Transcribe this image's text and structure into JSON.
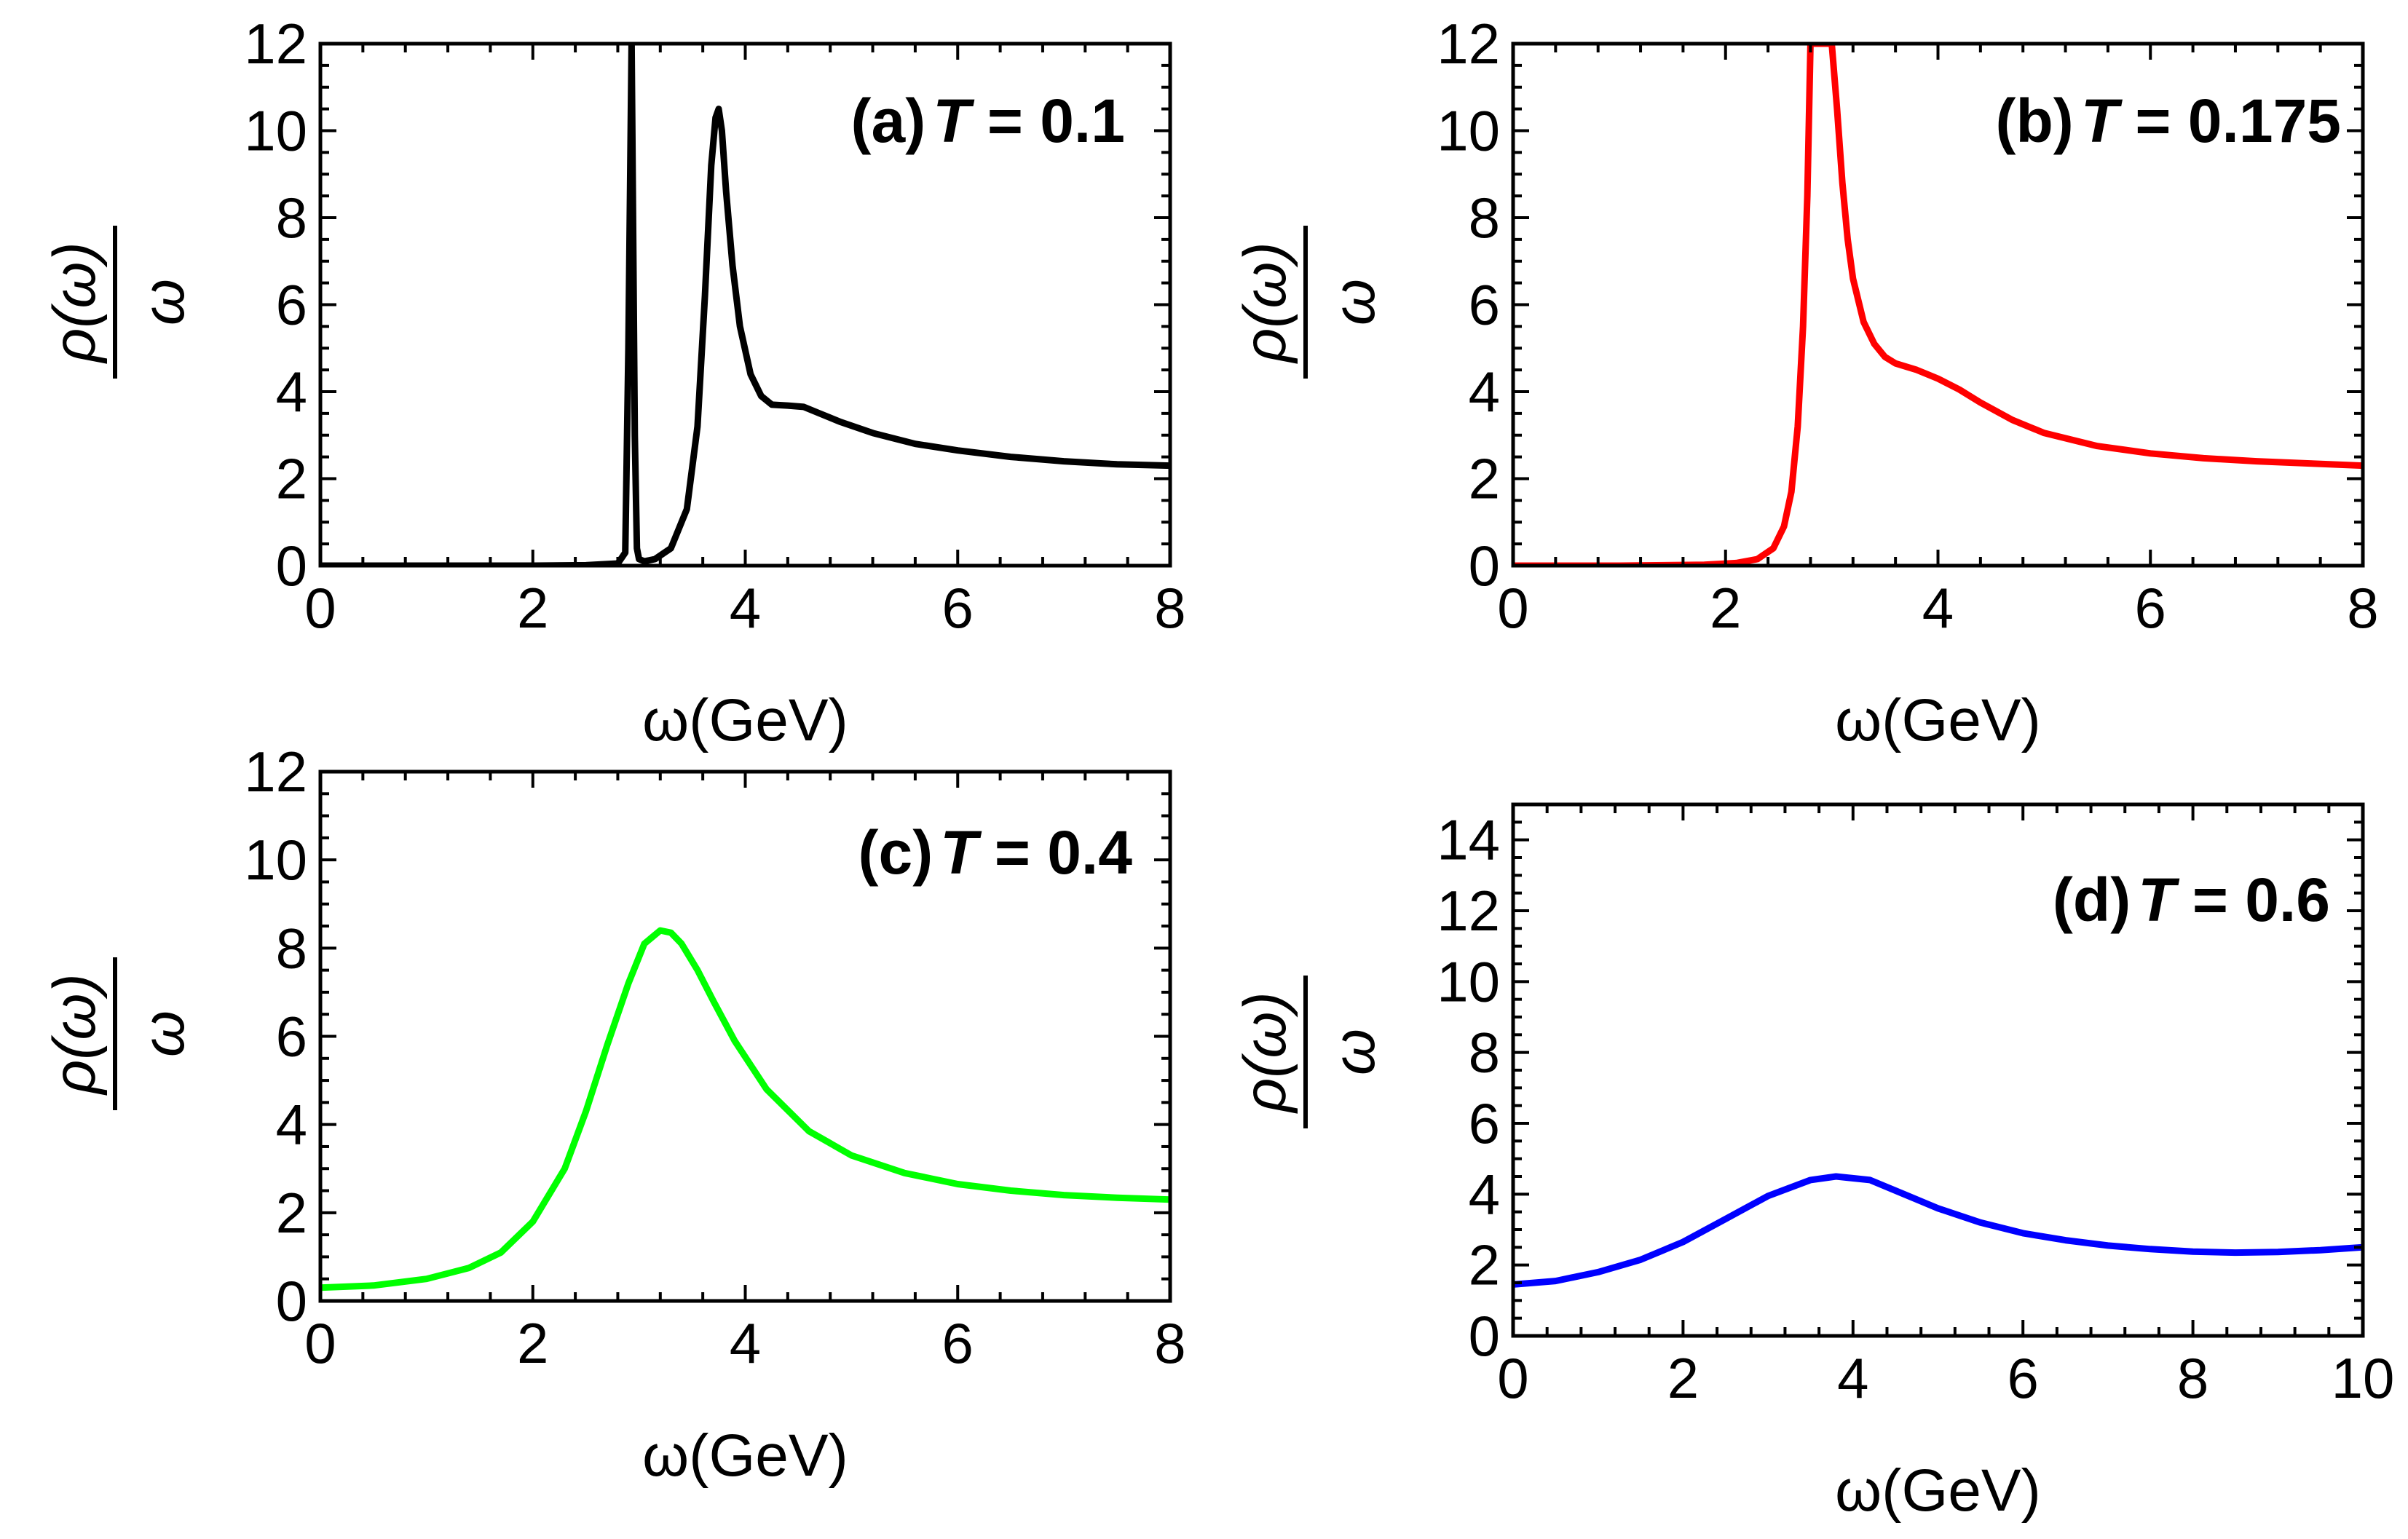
{
  "chart_data": [
    {
      "type": "line",
      "panel_tag": "(a)",
      "temp_label": "T = 0.1",
      "xlabel": "ω(GeV)",
      "ylabel_num": "ρ(ω)",
      "ylabel_den": "ω",
      "xlim": [
        0,
        8
      ],
      "ylim": [
        0,
        12
      ],
      "xticks": [
        0,
        2,
        4,
        6,
        8
      ],
      "yticks": [
        0,
        2,
        4,
        6,
        8,
        10,
        12
      ],
      "series": [
        {
          "color": "#000000",
          "x": [
            0,
            1,
            2,
            2.5,
            2.8,
            2.87,
            2.9,
            2.93,
            2.96,
            2.98,
            3.0,
            3.05,
            3.15,
            3.3,
            3.45,
            3.55,
            3.62,
            3.68,
            3.72,
            3.75,
            3.78,
            3.82,
            3.88,
            3.95,
            4.05,
            4.15,
            4.25,
            4.4,
            4.55,
            4.7,
            4.9,
            5.2,
            5.6,
            6.0,
            6.5,
            7.0,
            7.5,
            8.0
          ],
          "y": [
            0,
            0,
            0,
            0.01,
            0.05,
            0.3,
            5,
            12,
            3,
            0.4,
            0.15,
            0.1,
            0.15,
            0.4,
            1.3,
            3.2,
            6.2,
            9.2,
            10.3,
            10.5,
            10.0,
            8.6,
            6.9,
            5.5,
            4.4,
            3.9,
            3.7,
            3.68,
            3.65,
            3.5,
            3.3,
            3.05,
            2.8,
            2.65,
            2.5,
            2.4,
            2.33,
            2.3
          ]
        }
      ]
    },
    {
      "type": "line",
      "panel_tag": "(b)",
      "temp_label": "T = 0.175",
      "xlabel": "ω(GeV)",
      "ylabel_num": "ρ(ω)",
      "ylabel_den": "ω",
      "xlim": [
        0,
        8
      ],
      "ylim": [
        0,
        12
      ],
      "xticks": [
        0,
        2,
        4,
        6,
        8
      ],
      "yticks": [
        0,
        2,
        4,
        6,
        8,
        10,
        12
      ],
      "series": [
        {
          "color": "#ff0000",
          "x": [
            0,
            1,
            1.8,
            2.1,
            2.3,
            2.45,
            2.55,
            2.62,
            2.68,
            2.73,
            2.77,
            2.8,
            3.0,
            3.05,
            3.1,
            3.15,
            3.2,
            3.3,
            3.4,
            3.5,
            3.6,
            3.8,
            4.0,
            4.2,
            4.4,
            4.7,
            5.0,
            5.5,
            6.0,
            6.5,
            7.0,
            7.5,
            8.0
          ],
          "y": [
            0,
            0,
            0.02,
            0.06,
            0.15,
            0.4,
            0.9,
            1.7,
            3.2,
            5.5,
            8.5,
            12,
            12,
            10.5,
            8.8,
            7.5,
            6.6,
            5.6,
            5.1,
            4.8,
            4.65,
            4.5,
            4.3,
            4.05,
            3.75,
            3.35,
            3.05,
            2.75,
            2.58,
            2.47,
            2.4,
            2.35,
            2.3
          ]
        }
      ]
    },
    {
      "type": "line",
      "panel_tag": "(c)",
      "temp_label": "T = 0.4",
      "xlabel": "ω(GeV)",
      "ylabel_num": "ρ(ω)",
      "ylabel_den": "ω",
      "xlim": [
        0,
        8
      ],
      "ylim": [
        0,
        12
      ],
      "xticks": [
        0,
        2,
        4,
        6,
        8
      ],
      "yticks": [
        0,
        2,
        4,
        6,
        8,
        10,
        12
      ],
      "series": [
        {
          "color": "#00ff00",
          "x": [
            0,
            0.5,
            1.0,
            1.4,
            1.7,
            2.0,
            2.3,
            2.5,
            2.7,
            2.9,
            3.05,
            3.2,
            3.3,
            3.4,
            3.55,
            3.7,
            3.9,
            4.2,
            4.6,
            5.0,
            5.5,
            6.0,
            6.5,
            7.0,
            7.5,
            8.0
          ],
          "y": [
            0.3,
            0.35,
            0.5,
            0.75,
            1.1,
            1.8,
            3.0,
            4.3,
            5.8,
            7.2,
            8.1,
            8.4,
            8.35,
            8.1,
            7.5,
            6.8,
            5.9,
            4.8,
            3.85,
            3.3,
            2.9,
            2.65,
            2.5,
            2.4,
            2.34,
            2.3
          ]
        }
      ]
    },
    {
      "type": "line",
      "panel_tag": "(d)",
      "temp_label": "T = 0.6",
      "xlabel": "ω(GeV)",
      "ylabel_num": "ρ(ω)",
      "ylabel_den": "ω",
      "xlim": [
        0,
        10
      ],
      "ylim": [
        0,
        15
      ],
      "xticks": [
        0,
        2,
        4,
        6,
        8,
        10
      ],
      "yticks": [
        0,
        2,
        4,
        6,
        8,
        10,
        12,
        14
      ],
      "series": [
        {
          "color": "#0000ff",
          "x": [
            0,
            0.5,
            1.0,
            1.5,
            2.0,
            2.5,
            3.0,
            3.5,
            3.8,
            4.2,
            4.6,
            5.0,
            5.5,
            6.0,
            6.5,
            7.0,
            7.5,
            8.0,
            8.5,
            9.0,
            9.5,
            10.0
          ],
          "y": [
            1.45,
            1.55,
            1.8,
            2.15,
            2.65,
            3.3,
            3.95,
            4.4,
            4.5,
            4.4,
            4.0,
            3.6,
            3.2,
            2.9,
            2.7,
            2.55,
            2.45,
            2.38,
            2.35,
            2.37,
            2.42,
            2.5
          ]
        }
      ]
    }
  ]
}
